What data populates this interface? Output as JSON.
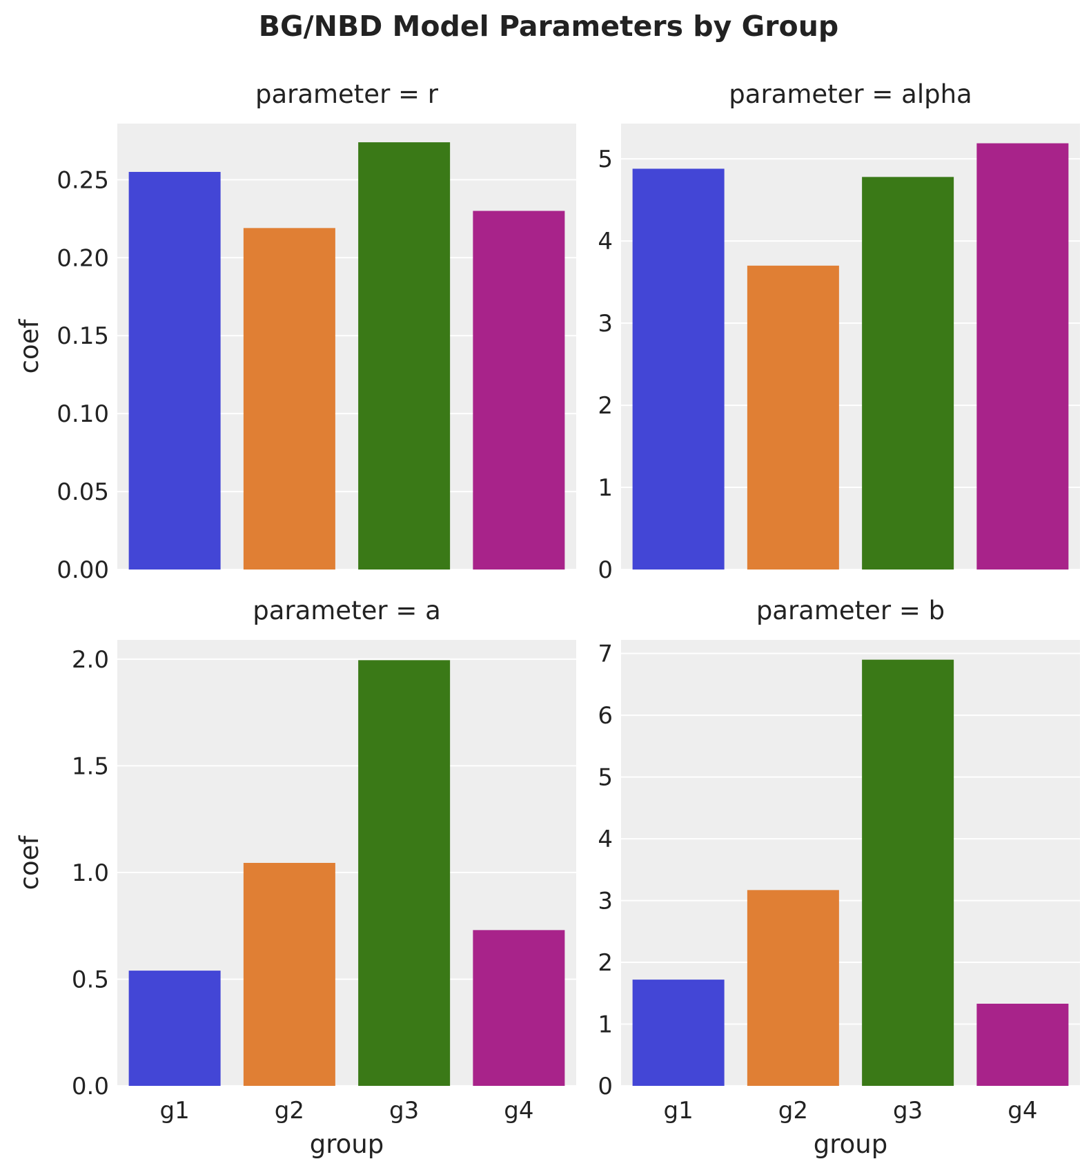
{
  "figure": {
    "title": "BG/NBD Model Parameters by Group"
  },
  "colors": {
    "panel_background": "#eeeeee",
    "grid": "#ffffff",
    "text": "#222222",
    "groups": [
      "#4346d6",
      "#e07f34",
      "#3a7917",
      "#a8238a"
    ]
  },
  "chart_data": [
    {
      "type": "bar",
      "title": "parameter = r",
      "xlabel": "",
      "ylabel": "coef",
      "categories": [
        "g1",
        "g2",
        "g3",
        "g4"
      ],
      "values": [
        0.255,
        0.219,
        0.274,
        0.23
      ],
      "ylim": [
        0,
        0.286
      ],
      "yticks": [
        0.0,
        0.05,
        0.1,
        0.15,
        0.2,
        0.25
      ],
      "ytick_labels": [
        "0.00",
        "0.05",
        "0.10",
        "0.15",
        "0.20",
        "0.25"
      ],
      "show_x_ticklabels": false,
      "grid": true
    },
    {
      "type": "bar",
      "title": "parameter = alpha",
      "xlabel": "",
      "ylabel": "",
      "categories": [
        "g1",
        "g2",
        "g3",
        "g4"
      ],
      "values": [
        4.88,
        3.7,
        4.78,
        5.19
      ],
      "ylim": [
        0,
        5.43
      ],
      "yticks": [
        0,
        1,
        2,
        3,
        4,
        5
      ],
      "ytick_labels": [
        "0",
        "1",
        "2",
        "3",
        "4",
        "5"
      ],
      "show_x_ticklabels": false,
      "grid": true
    },
    {
      "type": "bar",
      "title": "parameter = a",
      "xlabel": "group",
      "ylabel": "coef",
      "categories": [
        "g1",
        "g2",
        "g3",
        "g4"
      ],
      "values": [
        0.54,
        1.045,
        1.995,
        0.73
      ],
      "ylim": [
        0,
        2.09
      ],
      "yticks": [
        0.0,
        0.5,
        1.0,
        1.5,
        2.0
      ],
      "ytick_labels": [
        "0.0",
        "0.5",
        "1.0",
        "1.5",
        "2.0"
      ],
      "show_x_ticklabels": true,
      "grid": true
    },
    {
      "type": "bar",
      "title": "parameter = b",
      "xlabel": "group",
      "ylabel": "",
      "categories": [
        "g1",
        "g2",
        "g3",
        "g4"
      ],
      "values": [
        1.72,
        3.17,
        6.9,
        1.33
      ],
      "ylim": [
        0,
        7.22
      ],
      "yticks": [
        0,
        1,
        2,
        3,
        4,
        5,
        6,
        7
      ],
      "ytick_labels": [
        "0",
        "1",
        "2",
        "3",
        "4",
        "5",
        "6",
        "7"
      ],
      "show_x_ticklabels": true,
      "grid": true
    }
  ]
}
